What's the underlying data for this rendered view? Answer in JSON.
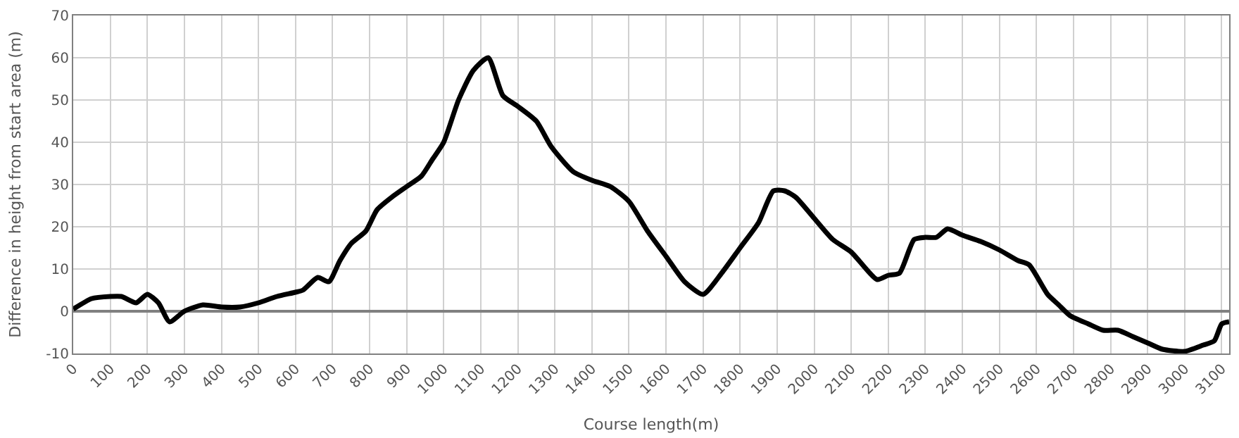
{
  "chart_data": {
    "type": "line",
    "xlabel": "Course length(m)",
    "ylabel": "Difference in height from start area (m)",
    "xlim": [
      0,
      3120
    ],
    "xticks": [
      0,
      100,
      200,
      300,
      400,
      500,
      600,
      700,
      800,
      900,
      1000,
      1100,
      1200,
      1300,
      1400,
      1500,
      1600,
      1700,
      1800,
      1900,
      2000,
      2100,
      2200,
      2300,
      2400,
      2500,
      2600,
      2700,
      2800,
      2900,
      3000,
      3100
    ],
    "ylim": [
      -10,
      70
    ],
    "yticks": [
      -10,
      0,
      10,
      20,
      30,
      40,
      50,
      60,
      70
    ],
    "grid": true,
    "marker": "none",
    "line_style": "solid",
    "series": [
      {
        "color": "#000000",
        "x": [
          0,
          50,
          100,
          130,
          170,
          200,
          230,
          260,
          300,
          350,
          400,
          450,
          500,
          550,
          600,
          620,
          660,
          690,
          720,
          750,
          790,
          820,
          860,
          900,
          940,
          970,
          1000,
          1040,
          1080,
          1120,
          1160,
          1200,
          1250,
          1290,
          1350,
          1400,
          1450,
          1500,
          1550,
          1600,
          1650,
          1700,
          1750,
          1800,
          1850,
          1890,
          1920,
          1950,
          2000,
          2050,
          2100,
          2170,
          2200,
          2230,
          2270,
          2300,
          2330,
          2360,
          2400,
          2450,
          2500,
          2550,
          2580,
          2630,
          2660,
          2690,
          2740,
          2780,
          2820,
          2860,
          2900,
          2940,
          3000,
          3050,
          3080,
          3100,
          3120
        ],
        "values": [
          0.5,
          3,
          3.5,
          3.5,
          2,
          4,
          2,
          -2.5,
          0,
          1.5,
          1,
          1,
          2,
          3.5,
          4.5,
          5,
          8,
          7,
          12,
          16,
          19,
          24,
          27,
          29.5,
          32,
          36,
          40,
          50,
          57,
          60,
          51,
          48.5,
          45,
          39,
          33,
          31,
          29.5,
          26,
          19,
          13,
          7,
          4,
          9,
          15,
          21,
          28.5,
          28.5,
          27,
          22,
          17,
          14,
          7.5,
          8.5,
          9,
          17,
          17.5,
          17.5,
          19.5,
          18,
          16.5,
          14.5,
          12,
          11,
          4,
          1.5,
          -1,
          -3,
          -4.5,
          -4.5,
          -6,
          -7.5,
          -9,
          -9.5,
          -8,
          -7,
          -3,
          -2.5
        ]
      }
    ]
  }
}
